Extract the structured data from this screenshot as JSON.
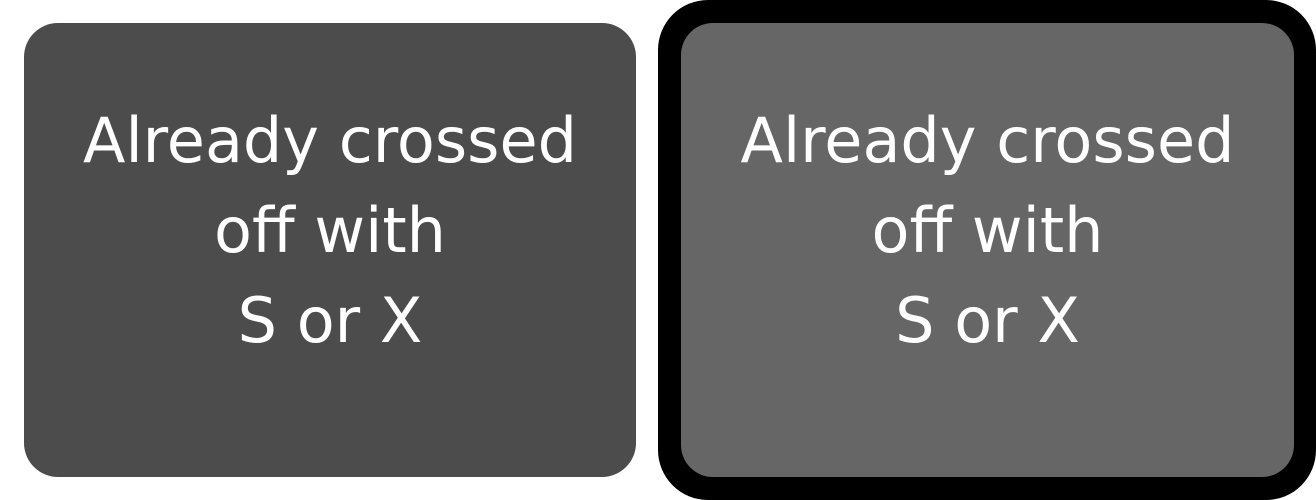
{
  "tiles": [
    {
      "label_lines": [
        "Already crossed",
        "off with",
        "S or X"
      ],
      "state": "default",
      "bg_color": "#4c4c4c"
    },
    {
      "label_lines": [
        "Already crossed",
        "off with",
        "S or X"
      ],
      "state": "selected",
      "bg_color": "#666666",
      "outline_color": "#000000"
    }
  ]
}
